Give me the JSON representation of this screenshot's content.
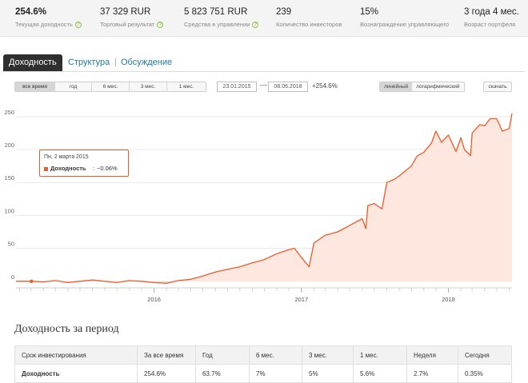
{
  "stats": [
    {
      "value": "254.6%",
      "label": "Текущая доходность",
      "help": true,
      "bold": true
    },
    {
      "value": "37 329 RUR",
      "label": "Торговый результат",
      "help": true,
      "bold": false
    },
    {
      "value": "5 823 751 RUR",
      "label": "Средства в управлении",
      "help": true,
      "bold": false
    },
    {
      "value": "239",
      "label": "Количество инвесторов",
      "help": false,
      "bold": false
    },
    {
      "value": "15%",
      "label": "Вознаграждение управляющего",
      "help": false,
      "bold": false
    },
    {
      "value": "3 года 4 мес.",
      "label": "Возраст портфеля",
      "help": false,
      "bold": false
    }
  ],
  "tabs": [
    {
      "label": "Доходность",
      "active": true
    },
    {
      "label": "Структура",
      "active": false
    },
    {
      "label": "Обсуждение",
      "active": false
    }
  ],
  "controls": {
    "ranges": [
      {
        "label": "все время",
        "active": true
      },
      {
        "label": "год",
        "active": false
      },
      {
        "label": "6 мес.",
        "active": false
      },
      {
        "label": "3 мес.",
        "active": false
      },
      {
        "label": "1 мес.",
        "active": false
      }
    ],
    "date_from": "23.01.2015",
    "date_dash": "—",
    "date_to": "08.06.2018",
    "period_return": "+254.6%",
    "scales": [
      {
        "label": "линейный",
        "active": true
      },
      {
        "label": "логарифмический",
        "active": false
      }
    ],
    "download": "скачать"
  },
  "tooltip": {
    "date": "Пн, 2 марта 2015",
    "label": "Доходность",
    "separator": ":",
    "value": "−0.06%"
  },
  "chart_data": {
    "type": "area",
    "xlabel": "",
    "ylabel": "",
    "ylim": [
      -10,
      262
    ],
    "xlim": [
      "2015-01-23",
      "2018-06-08"
    ],
    "yticks": [
      0,
      50,
      100,
      150,
      200,
      250
    ],
    "xticks": [
      "2016",
      "2017",
      "2018"
    ],
    "xtick_dates": [
      "2016-01-01",
      "2017-01-01",
      "2018-01-01"
    ],
    "color": "#f05a28",
    "fill_color": "#fde7df",
    "grid": "horizontal",
    "series": [
      {
        "x": [
          "2015-01-23",
          "2015-03-02",
          "2015-04-01",
          "2015-05-01",
          "2015-06-01",
          "2015-07-01",
          "2015-08-01",
          "2015-09-01",
          "2015-10-01",
          "2015-11-01",
          "2015-12-01",
          "2016-01-01",
          "2016-02-01",
          "2016-03-01",
          "2016-04-01",
          "2016-05-01",
          "2016-06-01",
          "2016-07-01",
          "2016-08-01",
          "2016-09-01",
          "2016-10-01",
          "2016-11-01",
          "2016-12-01",
          "2016-12-15",
          "2017-01-01",
          "2017-01-20",
          "2017-02-01",
          "2017-03-01",
          "2017-04-01",
          "2017-05-01",
          "2017-06-01",
          "2017-06-10",
          "2017-06-15",
          "2017-07-01",
          "2017-07-20",
          "2017-08-01",
          "2017-08-20",
          "2017-09-01",
          "2017-10-01",
          "2017-10-15",
          "2017-11-01",
          "2017-11-20",
          "2017-12-01",
          "2017-12-15",
          "2018-01-01",
          "2018-01-20",
          "2018-02-01",
          "2018-02-10",
          "2018-02-25",
          "2018-03-01",
          "2018-03-20",
          "2018-04-01",
          "2018-04-15",
          "2018-05-01",
          "2018-05-15",
          "2018-06-01",
          "2018-06-08"
        ],
        "y": [
          0,
          -0.06,
          -1,
          1,
          -2,
          0,
          2,
          0,
          -2,
          1,
          0,
          -2,
          -3,
          1,
          3,
          8,
          14,
          18,
          22,
          28,
          33,
          42,
          48,
          50,
          36,
          22,
          58,
          70,
          75,
          85,
          95,
          80,
          115,
          118,
          110,
          150,
          155,
          160,
          175,
          190,
          196,
          210,
          228,
          211,
          222,
          197,
          218,
          200,
          191,
          225,
          238,
          236,
          247,
          247,
          228,
          232,
          255
        ]
      }
    ]
  },
  "section_title": "Доходность за период",
  "period_table": {
    "headers": [
      "Срок инвестирования",
      "За все время",
      "Год",
      "6 мес.",
      "3 мес.",
      "1 мес.",
      "Неделя",
      "Сегодня"
    ],
    "row_label": "Доходность",
    "values": [
      "254.6%",
      "63.7%",
      "7%",
      "5%",
      "5.6%",
      "2.7%",
      "0.35%"
    ]
  }
}
